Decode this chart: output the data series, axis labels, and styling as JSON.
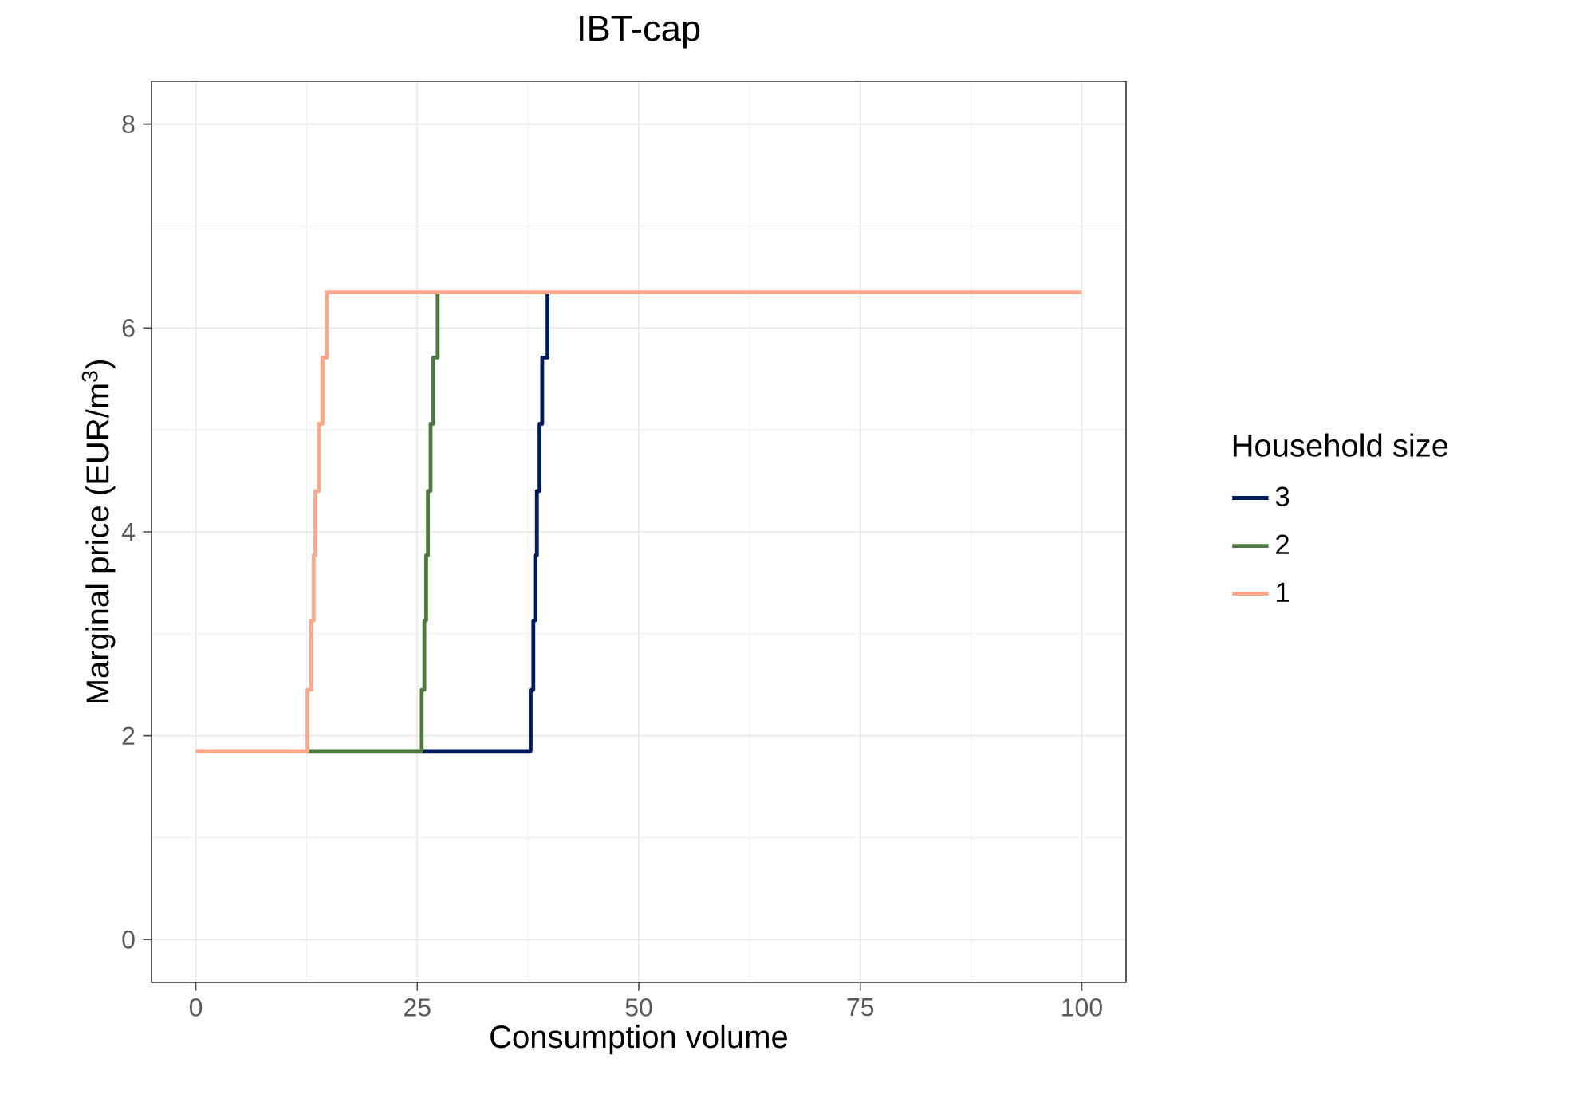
{
  "chart_data": {
    "type": "line",
    "title": "IBT-cap",
    "xlabel": "Consumption volume",
    "ylabel": "Marginal price (EUR/m$^{3}$)",
    "legend_title": "Household size",
    "xlim": [
      -5,
      105
    ],
    "ylim": [
      -0.42,
      8.42
    ],
    "xticks": [
      0,
      25,
      50,
      75,
      100
    ],
    "yticks": [
      0,
      2,
      4,
      6,
      8
    ],
    "grid": true,
    "legend": "right",
    "line_style": "solid",
    "marker": "none",
    "series": [
      {
        "name": "3",
        "color": "#001a5e",
        "x": [
          25.5,
          37.8,
          37.8,
          38.1,
          38.1,
          38.3,
          38.3,
          38.5,
          38.5,
          38.8,
          38.8,
          39.1,
          39.1,
          39.7,
          39.7
        ],
        "values": [
          1.85,
          1.85,
          2.45,
          2.45,
          3.13,
          3.13,
          3.77,
          3.77,
          4.4,
          4.4,
          5.06,
          5.06,
          5.71,
          5.71,
          6.35
        ]
      },
      {
        "name": "2",
        "color": "#4e7a3f",
        "x": [
          12.6,
          25.5,
          25.5,
          25.8,
          25.8,
          26.0,
          26.0,
          26.2,
          26.2,
          26.5,
          26.5,
          26.8,
          26.8,
          27.3,
          27.3
        ],
        "values": [
          1.85,
          1.85,
          2.45,
          2.45,
          3.13,
          3.13,
          3.77,
          3.77,
          4.4,
          4.4,
          5.06,
          5.06,
          5.71,
          5.71,
          6.35
        ]
      },
      {
        "name": "1",
        "color": "#ffa789",
        "x": [
          0,
          12.6,
          12.6,
          13.0,
          13.0,
          13.3,
          13.3,
          13.5,
          13.5,
          13.9,
          13.9,
          14.3,
          14.3,
          14.8,
          14.8,
          100
        ],
        "values": [
          1.85,
          1.85,
          2.45,
          2.45,
          3.13,
          3.13,
          3.77,
          3.77,
          4.4,
          4.4,
          5.06,
          5.06,
          5.71,
          5.71,
          6.35,
          6.35
        ]
      }
    ]
  }
}
